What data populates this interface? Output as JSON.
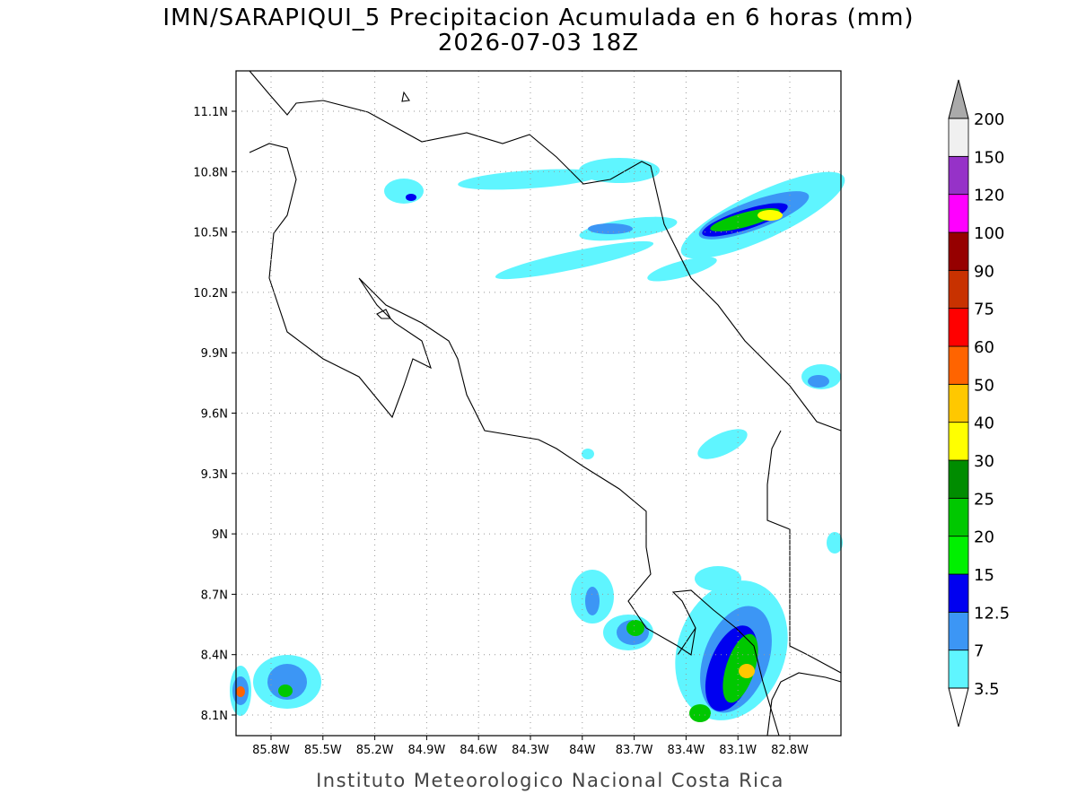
{
  "map": {
    "title": "IMN/SARAPIQUI_5 Precipitacion Acumulada en 6 horas (mm)",
    "subtitle": "2026-07-03 18Z",
    "footer": "Instituto Meteorologico Nacional Costa Rica",
    "xticks": [
      "85.8W",
      "85.5W",
      "85.2W",
      "84.9W",
      "84.6W",
      "84.3W",
      "84W",
      "83.7W",
      "83.4W",
      "83.1W",
      "82.8W"
    ],
    "yticks": [
      "11.1N",
      "10.8N",
      "10.5N",
      "10.2N",
      "9.9N",
      "9.6N",
      "9.3N",
      "9N",
      "8.7N",
      "8.4N",
      "8.1N"
    ],
    "colorbar": {
      "levels": [
        3.5,
        7,
        12.5,
        15,
        20,
        25,
        30,
        40,
        50,
        60,
        75,
        90,
        100,
        120,
        150,
        200
      ],
      "colors": [
        "#5ff5ff",
        "#3c96f5",
        "#0000f0",
        "#00f000",
        "#00c800",
        "#008c00",
        "#ffff00",
        "#ffc800",
        "#ff6400",
        "#ff0000",
        "#c83200",
        "#960000",
        "#ff00ff",
        "#9632c8",
        "#f0f0f0"
      ],
      "below_color": "#ffffff",
      "above_color": "#aaaaaa"
    }
  }
}
